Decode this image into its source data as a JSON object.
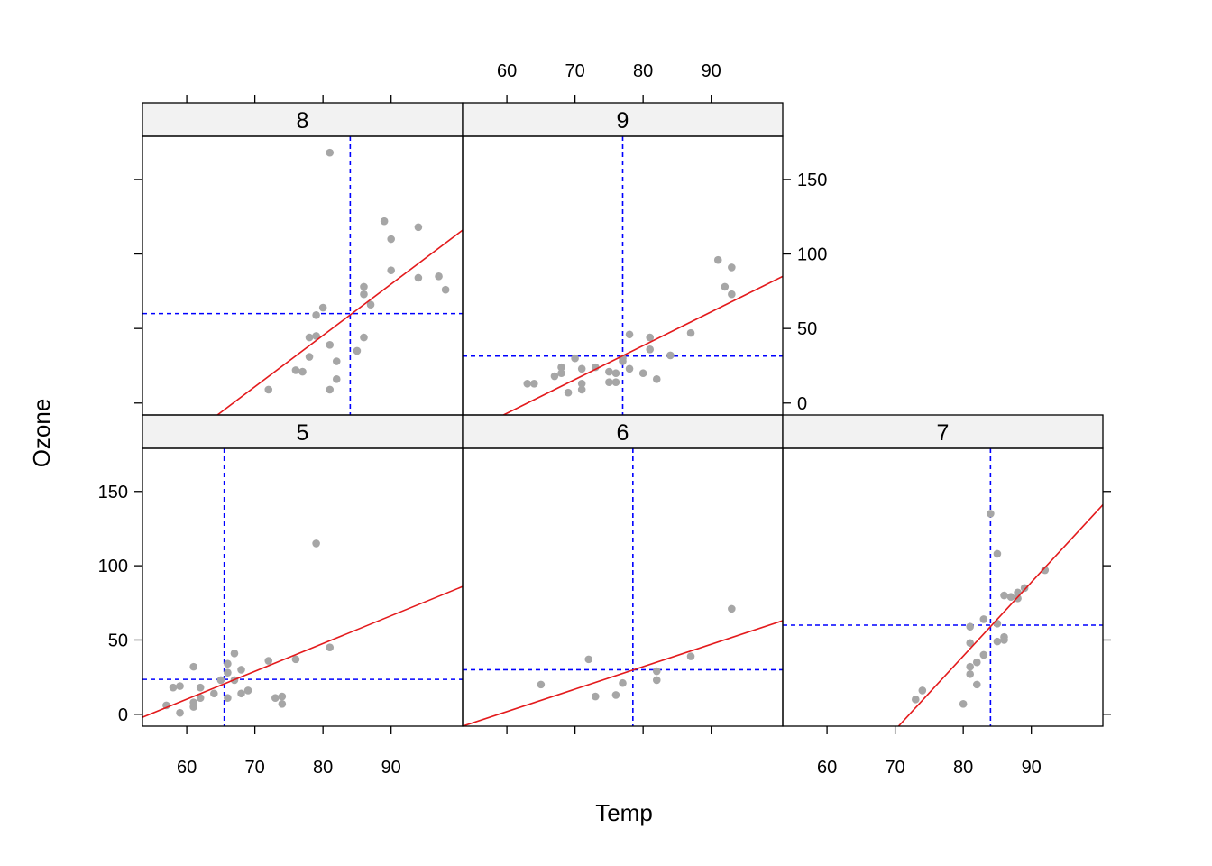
{
  "chart_data": {
    "type": "scatter",
    "layout": "lattice panels by Month, 3 columns x 2 rows",
    "xlabel": "Temp",
    "ylabel": "Ozone",
    "xlim": [
      53.5,
      100.5
    ],
    "ylim": [
      -8,
      179
    ],
    "x_ticks": [
      60,
      70,
      80,
      90
    ],
    "y_ticks": [
      0,
      50,
      100,
      150
    ],
    "colors": {
      "points": "#A6A6A6",
      "fit_line": "#E31A1C",
      "median_lines": "#0000FF",
      "strip_fill": "#F2F2F2"
    },
    "panels": [
      {
        "strip": "5",
        "median_x": 65.5,
        "median_y": 23.5,
        "fit": {
          "x0": 53.5,
          "y0": -2,
          "x1": 100.5,
          "y1": 86
        },
        "points": [
          [
            57,
            6
          ],
          [
            58,
            18
          ],
          [
            59,
            19
          ],
          [
            59,
            1
          ],
          [
            61,
            32
          ],
          [
            61,
            8
          ],
          [
            61,
            5
          ],
          [
            62,
            11
          ],
          [
            62,
            18
          ],
          [
            64,
            14
          ],
          [
            65,
            23
          ],
          [
            66,
            34
          ],
          [
            66,
            28
          ],
          [
            66,
            11
          ],
          [
            67,
            23
          ],
          [
            67,
            41
          ],
          [
            68,
            30
          ],
          [
            68,
            14
          ],
          [
            69,
            16
          ],
          [
            72,
            36
          ],
          [
            73,
            11
          ],
          [
            74,
            12
          ],
          [
            74,
            7
          ],
          [
            76,
            37
          ],
          [
            79,
            115
          ],
          [
            81,
            45
          ]
        ]
      },
      {
        "strip": "6",
        "median_x": 78.5,
        "median_y": 30,
        "fit": {
          "x0": 53.5,
          "y0": -8,
          "x1": 100.5,
          "y1": 63
        },
        "points": [
          [
            65,
            20
          ],
          [
            72,
            37
          ],
          [
            73,
            12
          ],
          [
            76,
            13
          ],
          [
            77,
            21
          ],
          [
            82,
            29
          ],
          [
            82,
            23
          ],
          [
            87,
            39
          ],
          [
            93,
            71
          ]
        ]
      },
      {
        "strip": "7",
        "median_x": 84,
        "median_y": 60,
        "fit": {
          "x0": 70.5,
          "y0": -8,
          "x1": 100.5,
          "y1": 141
        },
        "points": [
          [
            73,
            10
          ],
          [
            74,
            16
          ],
          [
            80,
            7
          ],
          [
            81,
            27
          ],
          [
            81,
            32
          ],
          [
            81,
            48
          ],
          [
            81,
            59
          ],
          [
            82,
            20
          ],
          [
            82,
            35
          ],
          [
            83,
            40
          ],
          [
            83,
            64
          ],
          [
            84,
            135
          ],
          [
            85,
            49
          ],
          [
            85,
            108
          ],
          [
            85,
            61
          ],
          [
            86,
            52
          ],
          [
            86,
            50
          ],
          [
            86,
            80
          ],
          [
            87,
            79
          ],
          [
            88,
            78
          ],
          [
            88,
            82
          ],
          [
            89,
            85
          ],
          [
            92,
            97
          ]
        ]
      },
      {
        "strip": "8",
        "median_x": 84,
        "median_y": 60,
        "fit": {
          "x0": 64.5,
          "y0": -8,
          "x1": 100.5,
          "y1": 116
        },
        "points": [
          [
            72,
            9
          ],
          [
            76,
            22
          ],
          [
            77,
            21
          ],
          [
            78,
            31
          ],
          [
            78,
            44
          ],
          [
            79,
            45
          ],
          [
            79,
            59
          ],
          [
            80,
            64
          ],
          [
            81,
            168
          ],
          [
            81,
            39
          ],
          [
            81,
            9
          ],
          [
            82,
            16
          ],
          [
            82,
            28
          ],
          [
            85,
            35
          ],
          [
            86,
            78
          ],
          [
            86,
            73
          ],
          [
            86,
            44
          ],
          [
            87,
            66
          ],
          [
            89,
            122
          ],
          [
            90,
            89
          ],
          [
            90,
            110
          ],
          [
            94,
            118
          ],
          [
            94,
            84
          ],
          [
            97,
            85
          ],
          [
            98,
            76
          ]
        ]
      },
      {
        "strip": "9",
        "median_x": 77,
        "median_y": 31.5,
        "fit": {
          "x0": 59.5,
          "y0": -8,
          "x1": 100.5,
          "y1": 85
        },
        "points": [
          [
            63,
            13
          ],
          [
            64,
            13
          ],
          [
            67,
            18
          ],
          [
            68,
            24
          ],
          [
            68,
            20
          ],
          [
            69,
            7
          ],
          [
            70,
            30
          ],
          [
            71,
            9
          ],
          [
            71,
            13
          ],
          [
            71,
            23
          ],
          [
            73,
            24
          ],
          [
            75,
            14
          ],
          [
            75,
            21
          ],
          [
            76,
            20
          ],
          [
            76,
            14
          ],
          [
            77,
            28
          ],
          [
            77,
            30
          ],
          [
            78,
            46
          ],
          [
            78,
            23
          ],
          [
            80,
            20
          ],
          [
            81,
            44
          ],
          [
            81,
            36
          ],
          [
            82,
            16
          ],
          [
            84,
            32
          ],
          [
            87,
            47
          ],
          [
            91,
            96
          ],
          [
            92,
            78
          ],
          [
            93,
            91
          ],
          [
            93,
            73
          ]
        ]
      }
    ]
  }
}
